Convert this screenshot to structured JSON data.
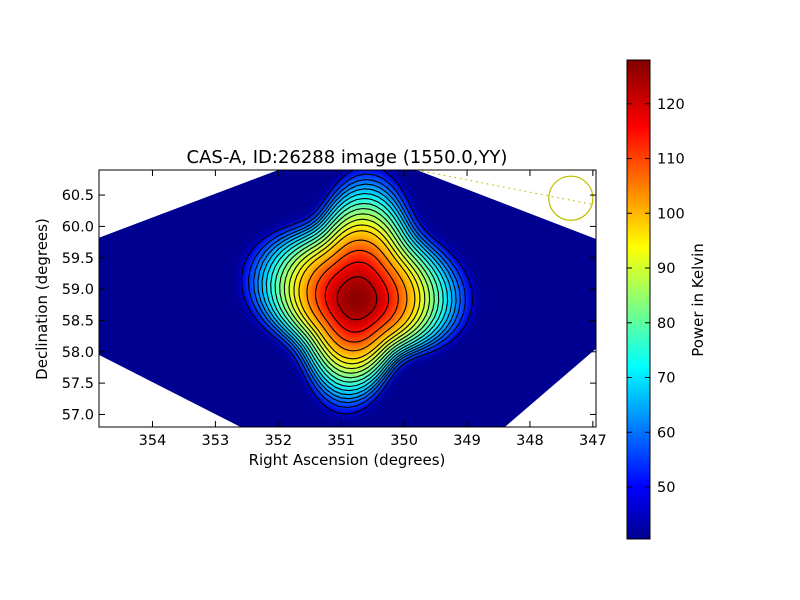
{
  "chart_data": [
    {
      "type": "heatmap",
      "title": "CAS-A, ID:26288 image (1550.0,YY)",
      "xlabel": "Right Ascension (degrees)",
      "ylabel": "Declination (degrees)",
      "xlim": [
        354.85,
        346.95
      ],
      "ylim": [
        56.8,
        60.9
      ],
      "x_ticks": [
        354,
        353,
        352,
        351,
        350,
        349,
        348,
        347
      ],
      "y_ticks": [
        57.0,
        57.5,
        58.0,
        58.5,
        59.0,
        59.5,
        60.0,
        60.5
      ],
      "x_tick_labels": [
        "354",
        "353",
        "352",
        "351",
        "350",
        "349",
        "348",
        "347"
      ],
      "y_tick_labels": [
        "57.0",
        "57.5",
        "58.0",
        "58.5",
        "59.0",
        "59.5",
        "60.0",
        "60.5"
      ],
      "colormap": "jet",
      "background_level": 42,
      "peak": {
        "ra": 350.75,
        "dec": 58.83,
        "value": 128
      },
      "image_footprint": [
        [
          352.0,
          60.9
        ],
        [
          349.8,
          60.9
        ],
        [
          346.95,
          59.8
        ],
        [
          346.95,
          58.05
        ],
        [
          348.4,
          56.8
        ],
        [
          352.6,
          56.8
        ],
        [
          354.85,
          57.95
        ],
        [
          354.85,
          59.82
        ]
      ],
      "contour_levels": [
        48,
        55,
        60,
        64,
        68,
        72,
        76,
        80,
        84,
        88,
        92,
        96,
        100,
        106,
        112,
        118,
        124
      ],
      "beam_marker": {
        "ra": 347.35,
        "dec": 60.45,
        "radius_deg": 0.35,
        "color": "#bfbf00"
      },
      "dotted_line": {
        "from": [
          349.8,
          60.9
        ],
        "to": [
          347.0,
          60.35
        ],
        "color": "#bfbf00"
      },
      "grid": false
    },
    {
      "type": "colorbar",
      "label": "Power in Kelvin",
      "range": [
        40.5,
        128
      ],
      "ticks": [
        50,
        60,
        70,
        80,
        90,
        100,
        110,
        120
      ],
      "tick_labels": [
        "50",
        "60",
        "70",
        "80",
        "90",
        "100",
        "110",
        "120"
      ],
      "colormap": "jet",
      "placement": "right"
    }
  ]
}
